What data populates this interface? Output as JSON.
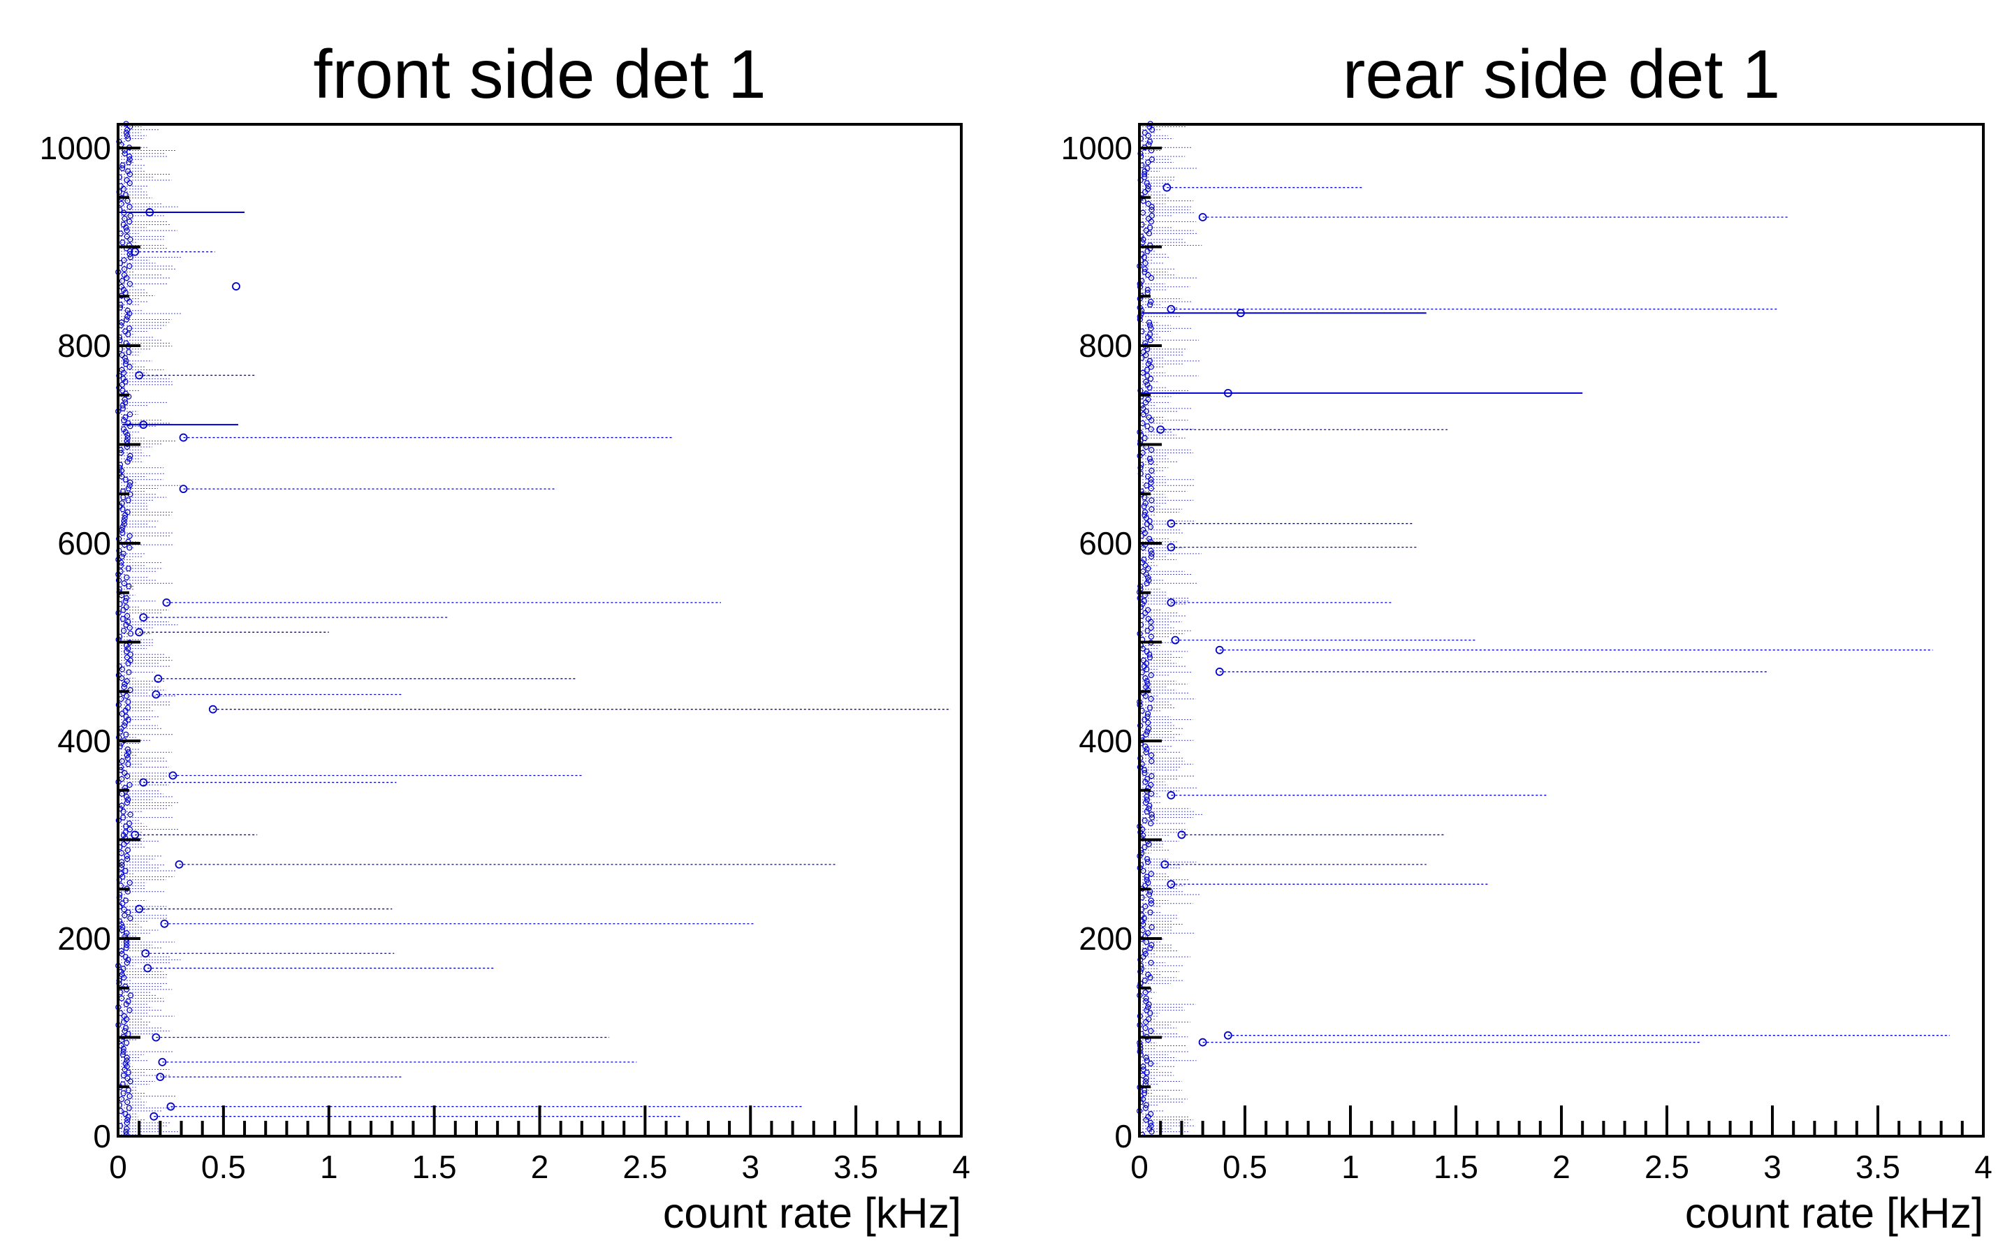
{
  "chart_data": [
    {
      "type": "scatter",
      "title": "front side det 1",
      "xlabel": "count rate [kHz]",
      "ylabel": "",
      "xlim": [
        0,
        4
      ],
      "ylim": [
        0,
        1024
      ],
      "x_ticks": [
        "0",
        "0.5",
        "1",
        "1.5",
        "2",
        "2.5",
        "3",
        "3.5",
        "4"
      ],
      "y_ticks": [
        "0",
        "200",
        "400",
        "600",
        "800",
        "1000"
      ],
      "grid": false,
      "legend": "none",
      "marker_color": "#0000cc",
      "series": [
        {
          "points": [
            {
              "y": 20,
              "x": 0.17,
              "xerr_lo": 0.0,
              "xerr_hi": 2.5
            },
            {
              "y": 30,
              "x": 0.25,
              "xerr_lo": 0.0,
              "xerr_hi": 3.0
            },
            {
              "y": 60,
              "x": 0.2,
              "xerr_lo": 0.0,
              "xerr_hi": 1.15
            },
            {
              "y": 75,
              "x": 0.21,
              "xerr_lo": 0.0,
              "xerr_hi": 2.25
            },
            {
              "y": 100,
              "x": 0.18,
              "xerr_lo": 0.0,
              "xerr_hi": 2.15
            },
            {
              "y": 170,
              "x": 0.14,
              "xerr_lo": 0.0,
              "xerr_hi": 1.65
            },
            {
              "y": 185,
              "x": 0.13,
              "xerr_lo": 0.0,
              "xerr_hi": 1.18
            },
            {
              "y": 215,
              "x": 0.22,
              "xerr_lo": 0.0,
              "xerr_hi": 2.8
            },
            {
              "y": 230,
              "x": 0.1,
              "xerr_lo": 0.0,
              "xerr_hi": 1.2
            },
            {
              "y": 275,
              "x": 0.29,
              "xerr_lo": 0.0,
              "xerr_hi": 3.12
            },
            {
              "y": 305,
              "x": 0.08,
              "xerr_lo": 0.0,
              "xerr_hi": 0.58
            },
            {
              "y": 365,
              "x": 0.26,
              "xerr_lo": 0.0,
              "xerr_hi": 1.94
            },
            {
              "y": 358,
              "x": 0.12,
              "xerr_lo": 0.0,
              "xerr_hi": 1.2
            },
            {
              "y": 432,
              "x": 0.45,
              "xerr_lo": 0.0,
              "xerr_hi": 3.5
            },
            {
              "y": 447,
              "x": 0.18,
              "xerr_lo": 0.0,
              "xerr_hi": 1.17
            },
            {
              "y": 463,
              "x": 0.19,
              "xerr_lo": 0.0,
              "xerr_hi": 1.98
            },
            {
              "y": 510,
              "x": 0.1,
              "xerr_lo": 0.0,
              "xerr_hi": 0.9
            },
            {
              "y": 525,
              "x": 0.12,
              "xerr_lo": 0.0,
              "xerr_hi": 1.45
            },
            {
              "y": 540,
              "x": 0.23,
              "xerr_lo": 0.0,
              "xerr_hi": 2.63
            },
            {
              "y": 655,
              "x": 0.31,
              "xerr_lo": 0.0,
              "xerr_hi": 1.77
            },
            {
              "y": 707,
              "x": 0.31,
              "xerr_lo": 0.0,
              "xerr_hi": 2.32
            },
            {
              "y": 720,
              "x": 0.12,
              "xerr_lo": 0.1,
              "xerr_hi": 0.45
            },
            {
              "y": 770,
              "x": 0.1,
              "xerr_lo": 0.0,
              "xerr_hi": 0.55
            },
            {
              "y": 860,
              "x": 0.56,
              "xerr_lo": 0.0,
              "xerr_hi": 0.0
            },
            {
              "y": 935,
              "x": 0.15,
              "xerr_lo": 0.15,
              "xerr_hi": 0.45
            },
            {
              "y": 895,
              "x": 0.08,
              "xerr_lo": 0.0,
              "xerr_hi": 0.38
            }
          ]
        }
      ]
    },
    {
      "type": "scatter",
      "title": "rear side det 1",
      "xlabel": "count rate [kHz]",
      "ylabel": "",
      "xlim": [
        0,
        4
      ],
      "ylim": [
        0,
        1024
      ],
      "x_ticks": [
        "0",
        "0.5",
        "1",
        "1.5",
        "2",
        "2.5",
        "3",
        "3.5",
        "4"
      ],
      "y_ticks": [
        "0",
        "200",
        "400",
        "600",
        "800",
        "1000"
      ],
      "grid": false,
      "legend": "none",
      "marker_color": "#0000cc",
      "series": [
        {
          "points": [
            {
              "y": 95,
              "x": 0.3,
              "xerr_lo": 0.0,
              "xerr_hi": 2.36
            },
            {
              "y": 102,
              "x": 0.42,
              "xerr_lo": 0.0,
              "xerr_hi": 3.42
            },
            {
              "y": 255,
              "x": 0.15,
              "xerr_lo": 0.0,
              "xerr_hi": 1.5
            },
            {
              "y": 275,
              "x": 0.12,
              "xerr_lo": 0.0,
              "xerr_hi": 1.24
            },
            {
              "y": 305,
              "x": 0.2,
              "xerr_lo": 0.0,
              "xerr_hi": 1.25
            },
            {
              "y": 345,
              "x": 0.15,
              "xerr_lo": 0.0,
              "xerr_hi": 1.78
            },
            {
              "y": 470,
              "x": 0.38,
              "xerr_lo": 0.0,
              "xerr_hi": 2.6
            },
            {
              "y": 492,
              "x": 0.38,
              "xerr_lo": 0.0,
              "xerr_hi": 3.38
            },
            {
              "y": 502,
              "x": 0.17,
              "xerr_lo": 0.0,
              "xerr_hi": 1.43
            },
            {
              "y": 540,
              "x": 0.15,
              "xerr_lo": 0.0,
              "xerr_hi": 1.05
            },
            {
              "y": 596,
              "x": 0.15,
              "xerr_lo": 0.0,
              "xerr_hi": 1.17
            },
            {
              "y": 620,
              "x": 0.15,
              "xerr_lo": 0.0,
              "xerr_hi": 1.15
            },
            {
              "y": 715,
              "x": 0.1,
              "xerr_lo": 0.0,
              "xerr_hi": 1.36
            },
            {
              "y": 752,
              "x": 0.42,
              "xerr_lo": 0.42,
              "xerr_hi": 1.68
            },
            {
              "y": 833,
              "x": 0.48,
              "xerr_lo": 0.48,
              "xerr_hi": 0.88
            },
            {
              "y": 837,
              "x": 0.15,
              "xerr_lo": 0.0,
              "xerr_hi": 2.88
            },
            {
              "y": 930,
              "x": 0.3,
              "xerr_lo": 0.0,
              "xerr_hi": 2.78
            },
            {
              "y": 960,
              "x": 0.13,
              "xerr_lo": 0.0,
              "xerr_hi": 0.93
            }
          ]
        }
      ]
    }
  ]
}
